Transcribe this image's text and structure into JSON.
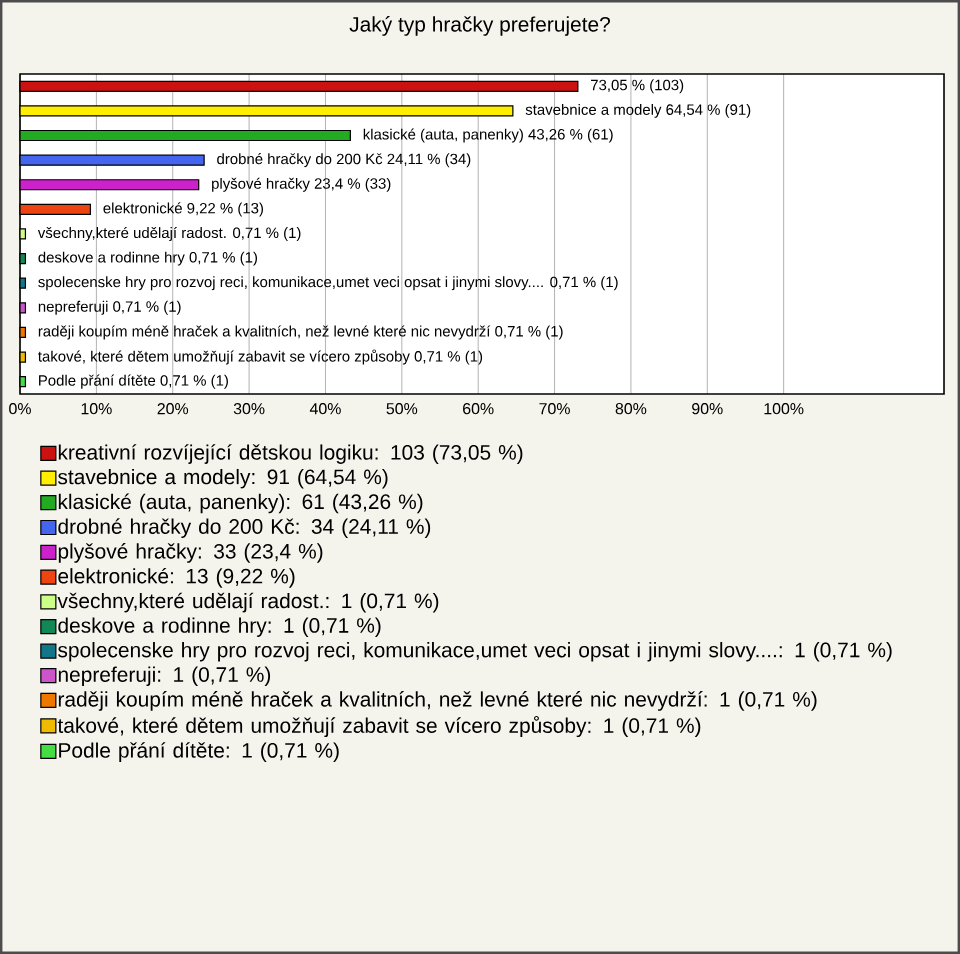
{
  "chart_data": {
    "type": "bar",
    "orientation": "horizontal",
    "stacked": true,
    "title": "Jaký typ hračky preferujete?",
    "categories": [
      null,
      null,
      null,
      null,
      null,
      null,
      null,
      null,
      null,
      null,
      null,
      null,
      null
    ],
    "series": [
      {
        "name": "kreativní rozvíjející dětskou logiku: 103 (73,05 %)",
        "color": "#cc1111",
        "values": [
          73.05,
          null,
          null,
          null,
          null,
          null,
          null,
          null,
          null,
          null,
          null,
          null,
          null
        ],
        "value_labels": [
          "73,05 % (103)",
          null,
          null,
          null,
          null,
          null,
          null,
          null,
          null,
          null,
          null,
          null,
          null
        ]
      },
      {
        "name": "stavebnice a modely: 91 (64,54 %)",
        "color": "#ffee00",
        "values": [
          null,
          64.54,
          null,
          null,
          null,
          null,
          null,
          null,
          null,
          null,
          null,
          null,
          null
        ],
        "value_labels": [
          null,
          "stavebnice a modely 64,54 % (91)",
          null,
          null,
          null,
          null,
          null,
          null,
          null,
          null,
          null,
          null,
          null
        ]
      },
      {
        "name": "klasické (auta, panenky): 61 (43,26 %)",
        "color": "#22aa22",
        "values": [
          null,
          null,
          43.26,
          null,
          null,
          null,
          null,
          null,
          null,
          null,
          null,
          null,
          null
        ],
        "value_labels": [
          null,
          null,
          "klasické (auta, panenky) 43,26 % (61)",
          null,
          null,
          null,
          null,
          null,
          null,
          null,
          null,
          null,
          null
        ]
      },
      {
        "name": "drobné hračky do 200 Kč: 34 (24,11 %)",
        "color": "#4466ee",
        "values": [
          null,
          null,
          null,
          24.11,
          null,
          null,
          null,
          null,
          null,
          null,
          null,
          null,
          null
        ],
        "value_labels": [
          null,
          null,
          null,
          "drobné hračky do 200 Kč 24,11 % (34)",
          null,
          null,
          null,
          null,
          null,
          null,
          null,
          null,
          null
        ]
      },
      {
        "name": "plyšové hračky: 33 (23,4 %)",
        "color": "#cc22cc",
        "values": [
          null,
          null,
          null,
          null,
          23.4,
          null,
          null,
          null,
          null,
          null,
          null,
          null,
          null
        ],
        "value_labels": [
          null,
          null,
          null,
          null,
          "plyšové hračky 23,4 % (33)",
          null,
          null,
          null,
          null,
          null,
          null,
          null,
          null
        ]
      },
      {
        "name": "elektronické: 13 (9,22 %)",
        "color": "#ee4411",
        "values": [
          null,
          null,
          null,
          null,
          null,
          9.22,
          null,
          null,
          null,
          null,
          null,
          null,
          null
        ],
        "value_labels": [
          null,
          null,
          null,
          null,
          null,
          "elektronické 9,22 % (13)",
          null,
          null,
          null,
          null,
          null,
          null,
          null
        ]
      },
      {
        "name": "všechny,které udělají radost.: 1 (0,71 %)",
        "color": "#ccff88",
        "values": [
          null,
          null,
          null,
          null,
          null,
          null,
          0.71,
          null,
          null,
          null,
          null,
          null,
          null
        ],
        "value_labels": [
          null,
          null,
          null,
          null,
          null,
          null,
          "všechny,které udělají radost. 0,71 % (1)",
          null,
          null,
          null,
          null,
          null,
          null
        ]
      },
      {
        "name": "deskove a rodinne hry: 1 (0,71 %)",
        "color": "#118855",
        "values": [
          null,
          null,
          null,
          null,
          null,
          null,
          null,
          0.71,
          null,
          null,
          null,
          null,
          null
        ],
        "value_labels": [
          null,
          null,
          null,
          null,
          null,
          null,
          null,
          "deskove a rodinne hry 0,71 % (1)",
          null,
          null,
          null,
          null,
          null
        ]
      },
      {
        "name": "spolecenske hry pro rozvoj reci, komunikace,umet veci opsat i jinymi slovy....: 1 (0,71 %)",
        "color": "#117788",
        "values": [
          null,
          null,
          null,
          null,
          null,
          null,
          null,
          null,
          0.71,
          null,
          null,
          null,
          null
        ],
        "value_labels": [
          null,
          null,
          null,
          null,
          null,
          null,
          null,
          null,
          "spolecenske hry pro rozvoj reci, komunikace,umet veci opsat i jinymi slovy.... 0,71 % (1)",
          null,
          null,
          null,
          null
        ]
      },
      {
        "name": "nepreferuji: 1 (0,71 %)",
        "color": "#cc55cc",
        "values": [
          null,
          null,
          null,
          null,
          null,
          null,
          null,
          null,
          null,
          0.71,
          null,
          null,
          null
        ],
        "value_labels": [
          null,
          null,
          null,
          null,
          null,
          null,
          null,
          null,
          null,
          "nepreferuji 0,71 % (1)",
          null,
          null,
          null
        ]
      },
      {
        "name": "raději koupím méně hraček a kvalitních, než levné které nic nevydrží: 1 (0,71 %)",
        "color": "#ee7700",
        "values": [
          null,
          null,
          null,
          null,
          null,
          null,
          null,
          null,
          null,
          null,
          0.71,
          null,
          null
        ],
        "value_labels": [
          null,
          null,
          null,
          null,
          null,
          null,
          null,
          null,
          null,
          null,
          "raději koupím méně hraček a kvalitních, než levné které nic nevydrží 0,71 % (1)",
          null,
          null
        ]
      },
      {
        "name": "takové, které dětem umožňují zabavit se vícero způsoby: 1 (0,71 %)",
        "color": "#eebb00",
        "values": [
          null,
          null,
          null,
          null,
          null,
          null,
          null,
          null,
          null,
          null,
          null,
          0.71,
          null
        ],
        "value_labels": [
          null,
          null,
          null,
          null,
          null,
          null,
          null,
          null,
          null,
          null,
          null,
          "takové, které dětem umožňují zabavit se vícero způsoby 0,71 % (1)",
          null
        ]
      },
      {
        "name": "Podle přání dítěte: 1 (0,71 %)",
        "color": "#44dd44",
        "values": [
          null,
          null,
          null,
          null,
          null,
          null,
          null,
          null,
          null,
          null,
          null,
          null,
          0.71
        ],
        "value_labels": [
          null,
          null,
          null,
          null,
          null,
          null,
          null,
          null,
          null,
          null,
          null,
          null,
          "Podle přání dítěte 0,71 % (1)"
        ]
      }
    ],
    "xlim": [
      0,
      121
    ],
    "xticks": [
      {
        "value": 0,
        "label": "0%"
      },
      {
        "value": 10,
        "label": "10%"
      },
      {
        "value": 20,
        "label": "20%"
      },
      {
        "value": 30,
        "label": "30%"
      },
      {
        "value": 40,
        "label": "40%"
      },
      {
        "value": 50,
        "label": "50%"
      },
      {
        "value": 60,
        "label": "60%"
      },
      {
        "value": 70,
        "label": "70%"
      },
      {
        "value": 80,
        "label": "80%"
      },
      {
        "value": 90,
        "label": "90%"
      },
      {
        "value": 100,
        "label": "100%"
      }
    ],
    "grid": "x",
    "legend": "bottom",
    "tick_labels": "x"
  }
}
